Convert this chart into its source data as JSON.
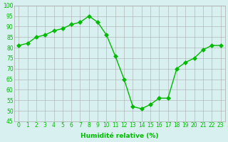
{
  "x": [
    0,
    1,
    2,
    3,
    4,
    5,
    6,
    7,
    8,
    9,
    10,
    11,
    12,
    13,
    14,
    15,
    16,
    17,
    18,
    19,
    20,
    21,
    22,
    23
  ],
  "y": [
    81,
    82,
    85,
    86,
    88,
    89,
    91,
    92,
    95,
    92,
    86,
    76,
    65,
    52,
    51,
    53,
    56,
    56,
    70,
    73,
    75,
    79,
    81,
    81
  ],
  "xlabel": "Humidité relative (%)",
  "ylim": [
    45,
    100
  ],
  "yticks": [
    45,
    50,
    55,
    60,
    65,
    70,
    75,
    80,
    85,
    90,
    95,
    100
  ],
  "bg_color": "#d8f0f0",
  "grid_color": "#aaaaaa",
  "line_color": "#00bb00",
  "marker_color": "#00bb00"
}
